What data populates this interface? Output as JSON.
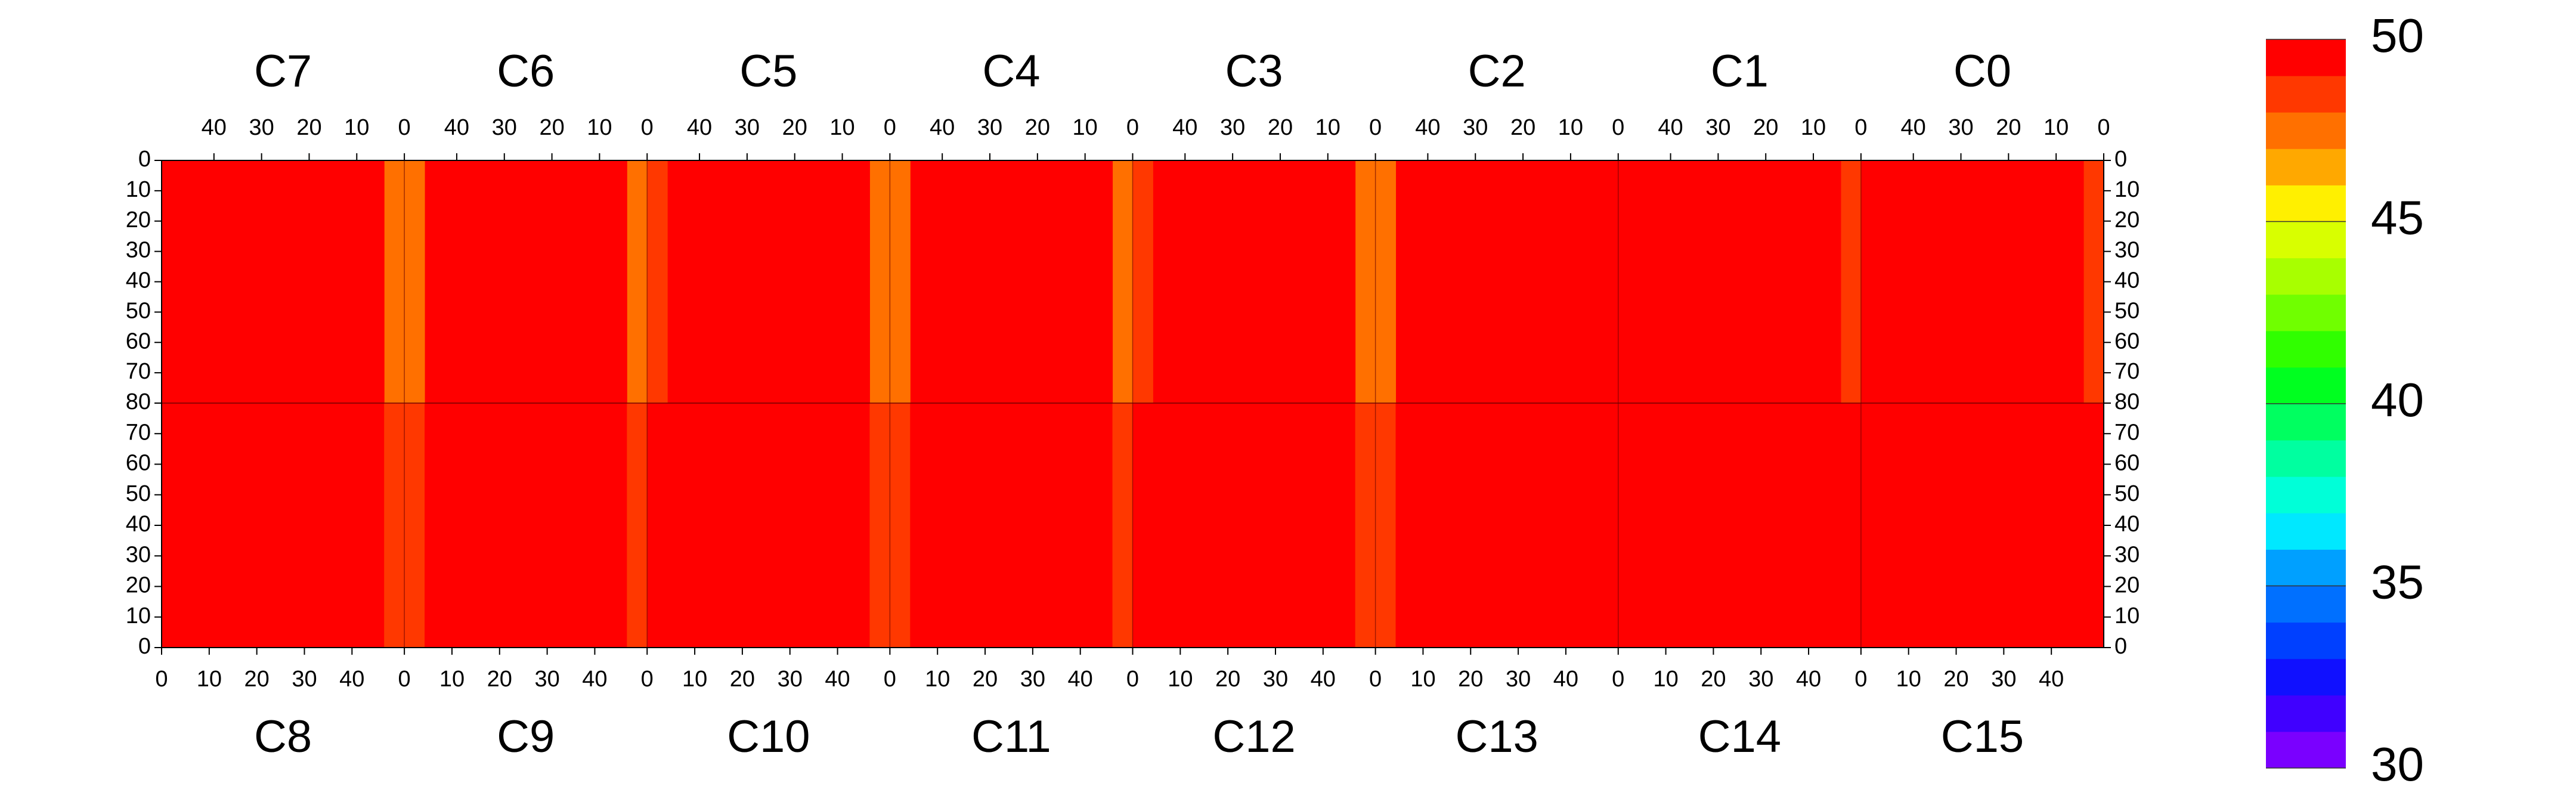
{
  "chart_data": {
    "type": "heatmap",
    "zlim": [
      30,
      50
    ],
    "zticks": [
      30,
      35,
      40,
      45,
      50
    ],
    "colors": [
      "#7a00ff",
      "#4000ff",
      "#1010ff",
      "#0040ff",
      "#0070ff",
      "#00a0ff",
      "#00e8ff",
      "#00ffd8",
      "#00ffa0",
      "#00ff60",
      "#00ff20",
      "#30ff00",
      "#70ff00",
      "#a8ff00",
      "#d8ff00",
      "#fff000",
      "#ffa800",
      "#ff7000",
      "#ff3800",
      "#ff0000"
    ],
    "xlim": [
      0,
      51
    ],
    "xticks": [
      0,
      10,
      20,
      30,
      40
    ],
    "ylim": [
      0,
      80
    ],
    "yticks_top": [
      0,
      10,
      20,
      30,
      40,
      50,
      60,
      70,
      80
    ],
    "yticks_bottom": [
      0,
      10,
      20,
      30,
      40,
      50,
      60,
      70
    ],
    "top_panels": [
      {
        "name": "C7",
        "values": [
          47.6,
          49.5,
          49.6,
          49.7,
          49.7,
          49.6,
          49.7,
          49.6,
          49.7,
          49.6,
          49.7,
          49.6
        ]
      },
      {
        "name": "C6",
        "values": [
          47.9,
          49.5,
          49.6,
          49.7,
          49.7,
          49.6,
          49.7,
          49.6,
          49.7,
          49.6,
          49.5,
          47.8
        ]
      },
      {
        "name": "C5",
        "values": [
          47.7,
          49.5,
          49.7,
          49.7,
          49.7,
          49.6,
          49.7,
          49.7,
          49.7,
          49.6,
          49.5,
          48.2
        ]
      },
      {
        "name": "C4",
        "values": [
          47.8,
          49.5,
          49.6,
          49.7,
          49.7,
          49.7,
          49.7,
          49.6,
          49.7,
          49.6,
          49.4,
          47.5
        ]
      },
      {
        "name": "C3",
        "values": [
          47.8,
          49.5,
          49.7,
          49.7,
          49.7,
          49.7,
          49.7,
          49.7,
          49.7,
          49.6,
          49.5,
          48.1
        ]
      },
      {
        "name": "C2",
        "values": [
          49.9,
          49.9,
          49.9,
          49.8,
          49.8,
          49.8,
          49.7,
          49.6,
          49.6,
          49.5,
          49.4,
          47.9
        ]
      },
      {
        "name": "C1",
        "values": [
          48.8,
          49.9,
          49.9,
          49.9,
          49.9,
          49.9,
          49.9,
          49.9,
          49.9,
          49.9,
          49.9,
          49.9
        ]
      },
      {
        "name": "C0",
        "values": [
          48.0,
          49.6,
          49.8,
          49.9,
          49.9,
          49.9,
          49.9,
          49.9,
          49.9,
          49.9,
          49.9,
          49.9
        ]
      }
    ],
    "bottom_panels": [
      {
        "name": "C8",
        "values": [
          49.8,
          49.7,
          49.7,
          49.7,
          49.7,
          49.7,
          49.7,
          49.7,
          49.7,
          49.6,
          49.5,
          48.5
        ]
      },
      {
        "name": "C9",
        "values": [
          48.3,
          49.5,
          49.6,
          49.7,
          49.7,
          49.7,
          49.7,
          49.7,
          49.7,
          49.6,
          49.5,
          48.6
        ]
      },
      {
        "name": "C10",
        "values": [
          49.0,
          49.6,
          49.7,
          49.7,
          49.7,
          49.7,
          49.7,
          49.7,
          49.7,
          49.6,
          49.5,
          48.2
        ]
      },
      {
        "name": "C11",
        "values": [
          48.3,
          49.5,
          49.6,
          49.7,
          49.7,
          49.7,
          49.7,
          49.6,
          49.7,
          49.6,
          49.5,
          48.7
        ]
      },
      {
        "name": "C12",
        "values": [
          49.0,
          49.6,
          49.7,
          49.7,
          49.7,
          49.7,
          49.7,
          49.7,
          49.7,
          49.7,
          49.6,
          48.3
        ]
      },
      {
        "name": "C13",
        "values": [
          48.4,
          49.7,
          49.8,
          49.8,
          49.8,
          49.8,
          49.9,
          49.9,
          49.9,
          49.9,
          49.9,
          49.9
        ]
      },
      {
        "name": "C14",
        "values": [
          49.9,
          49.9,
          49.9,
          49.9,
          49.9,
          49.9,
          49.9,
          49.9,
          49.9,
          49.9,
          49.9,
          49.9
        ]
      },
      {
        "name": "C15",
        "values": [
          49.6,
          49.9,
          49.9,
          49.9,
          49.9,
          49.9,
          49.9,
          49.9,
          49.9,
          49.9,
          49.9,
          49.9
        ]
      }
    ]
  }
}
